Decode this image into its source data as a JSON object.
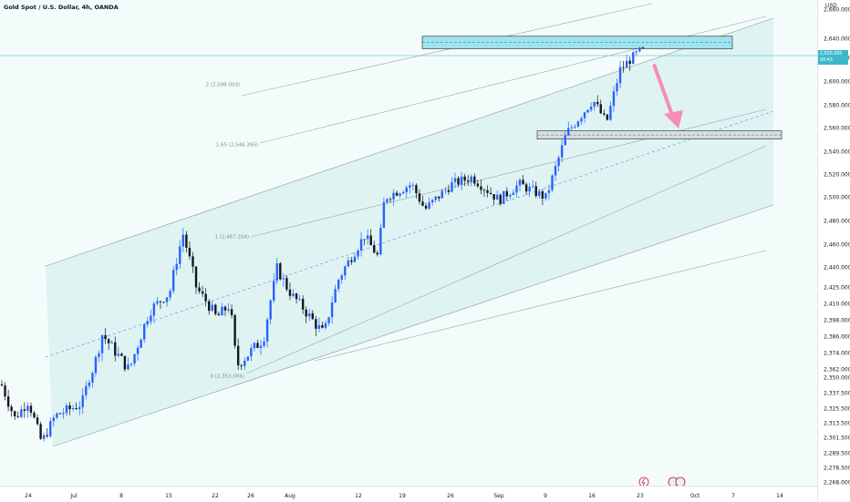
{
  "header": {
    "symbol": "Gold Spot / U.S. Dollar, 4h, OANDA"
  },
  "axis": {
    "currency": "USD",
    "y_ticks": [
      "2,660.000",
      "2,640.000",
      "2,620.000",
      "2,600.000",
      "2,580.000",
      "2,560.000",
      "2,540.000",
      "2,520.000",
      "2,500.000",
      "2,480.000",
      "2,460.000",
      "2,440.000",
      "2,425.000",
      "2,410.000",
      "2,398.000",
      "2,386.000",
      "2,374.000",
      "2,362.000",
      "2,350.000",
      "2,337.500",
      "2,325.500",
      "2,313.500",
      "2,301.500",
      "2,289.500",
      "2,278.500",
      "2,268.000"
    ],
    "x_ticks": [
      "24",
      "Jul",
      "8",
      "15",
      "22",
      "26",
      "Aug",
      "12",
      "19",
      "26",
      "Sep",
      "9",
      "16",
      "23",
      "Oct",
      "7",
      "14"
    ]
  },
  "price_tag": {
    "price": "2,625.665",
    "countdown": "00:43"
  },
  "colors": {
    "bull": "#2962ff",
    "bear": "#131722",
    "channel_fill": "#d6f0f0",
    "resistance_zone": "#9ee3ee",
    "arrow": "#f48fb1",
    "price_line": "#3cb8c8"
  },
  "chart_data": {
    "type": "candlestick",
    "title": "Gold Spot / U.S. Dollar, 4h, OANDA",
    "ylabel": "USD",
    "y_scale": "non-linear price axis",
    "fib_levels": [
      {
        "label": "2 (2,598.003)",
        "value": 2598.003
      },
      {
        "label": "1.65 (2,546.395)",
        "value": 2546.395
      },
      {
        "label": "1 (2,467.204)",
        "value": 2467.204
      },
      {
        "label": "0 (2,353.006)",
        "value": 2353.006
      }
    ],
    "zones": [
      {
        "name": "resistance",
        "low": 2630,
        "high": 2642
      },
      {
        "name": "support",
        "low": 2551,
        "high": 2558
      }
    ],
    "close_path": [
      [
        "Jun 20",
        2345
      ],
      [
        "Jun 22",
        2318
      ],
      [
        "Jun 24",
        2332
      ],
      [
        "Jun 26",
        2298
      ],
      [
        "Jun 28",
        2320
      ],
      [
        "Jul 2",
        2330
      ],
      [
        "Jul 5",
        2388
      ],
      [
        "Jul 9",
        2362
      ],
      [
        "Jul 12",
        2405
      ],
      [
        "Jul 15",
        2420
      ],
      [
        "Jul 17",
        2470
      ],
      [
        "Jul 19",
        2425
      ],
      [
        "Jul 22",
        2400
      ],
      [
        "Jul 24",
        2410
      ],
      [
        "Jul 25",
        2365
      ],
      [
        "Jul 29",
        2385
      ],
      [
        "Jul 31",
        2440
      ],
      [
        "Aug 2",
        2420
      ],
      [
        "Aug 5",
        2400
      ],
      [
        "Aug 7",
        2388
      ],
      [
        "Aug 9",
        2430
      ],
      [
        "Aug 13",
        2468
      ],
      [
        "Aug 15",
        2450
      ],
      [
        "Aug 16",
        2500
      ],
      [
        "Aug 20",
        2512
      ],
      [
        "Aug 22",
        2490
      ],
      [
        "Aug 26",
        2512
      ],
      [
        "Aug 29",
        2518
      ],
      [
        "Sep 2",
        2498
      ],
      [
        "Sep 5",
        2512
      ],
      [
        "Sep 9",
        2500
      ],
      [
        "Sep 12",
        2555
      ],
      [
        "Sep 16",
        2585
      ],
      [
        "Sep 18",
        2565
      ],
      [
        "Sep 20",
        2610
      ],
      [
        "Sep 23",
        2628
      ]
    ],
    "projection": {
      "from": 2618,
      "to": 2560,
      "direction": "down"
    }
  }
}
